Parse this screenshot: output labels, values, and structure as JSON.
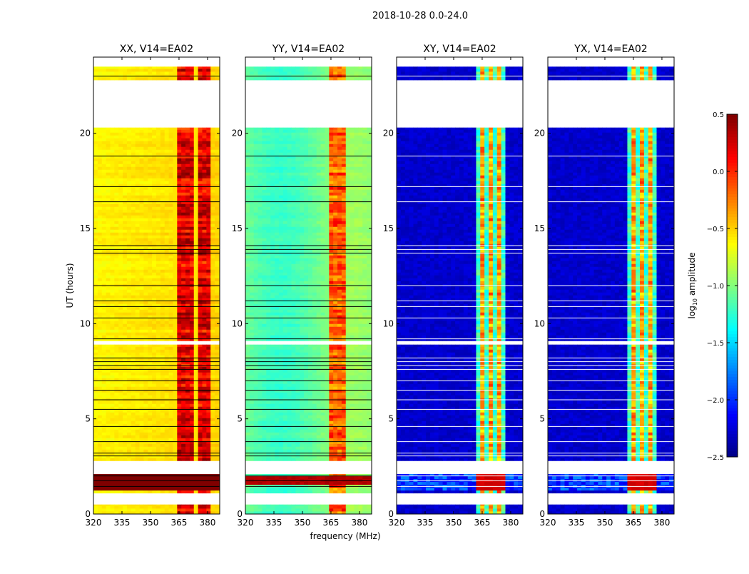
{
  "suptitle": "2018-10-28 0.0-24.0",
  "xlabel": "frequency (MHz)",
  "ylabel": "UT (hours)",
  "colorbar": {
    "label": "log10 amplitude",
    "label_base": "log",
    "label_sub": "10",
    "label_rest": " amplitude",
    "vmin": -2.5,
    "vmax": 0.5,
    "ticks": [
      "0.5",
      "0.0",
      "−0.5",
      "−1.0",
      "−1.5",
      "−2.0",
      "−2.5"
    ],
    "tick_values": [
      0.5,
      0,
      -0.5,
      -1,
      -1.5,
      -2,
      -2.5
    ],
    "colormap": "jet"
  },
  "chart_data": [
    {
      "type": "heatmap",
      "title": "XX, V14=EA02",
      "xlim": [
        320,
        386.4
      ],
      "ylim": [
        0,
        24
      ],
      "xticks": [
        "320",
        "335",
        "350",
        "365",
        "380"
      ],
      "xtick_values": [
        320,
        335,
        350,
        365,
        380
      ],
      "yticks": [
        "0",
        "5",
        "10",
        "15",
        "20"
      ],
      "ytick_values": [
        0,
        5,
        10,
        15,
        20
      ],
      "base_level": -0.65,
      "rfi_level": 0.05,
      "rfi_band_mhz": [
        362,
        382
      ],
      "strong_rows_hours": [
        1.2,
        2.0
      ],
      "strong_level": 0.5
    },
    {
      "type": "heatmap",
      "title": "YY, V14=EA02",
      "xlim": [
        320,
        386.4
      ],
      "ylim": [
        0,
        24
      ],
      "xticks": [
        "320",
        "335",
        "350",
        "365",
        "380"
      ],
      "xtick_values": [
        320,
        335,
        350,
        365,
        380
      ],
      "yticks": [
        "0",
        "5",
        "10",
        "15",
        "20"
      ],
      "ytick_values": [
        0,
        5,
        10,
        15,
        20
      ],
      "base_level": -1.1,
      "rfi_level": -0.3,
      "rfi_band_mhz": [
        362,
        372
      ],
      "strong_rows_hours": [
        1.5,
        1.9
      ],
      "strong_level": 0.3
    },
    {
      "type": "heatmap",
      "title": "XY, V14=EA02",
      "xlim": [
        320,
        386.4
      ],
      "ylim": [
        0,
        24
      ],
      "xticks": [
        "320",
        "335",
        "350",
        "365",
        "380"
      ],
      "xtick_values": [
        320,
        335,
        350,
        365,
        380
      ],
      "yticks": [
        "0",
        "5",
        "10",
        "15",
        "20"
      ],
      "ytick_values": [
        0,
        5,
        10,
        15,
        20
      ],
      "base_level": -2.35,
      "rfi_level": -0.6,
      "rfi_band_mhz": [
        362,
        378
      ],
      "strong_rows_hours": [
        1.2,
        2.0
      ],
      "strong_level": 0.2
    },
    {
      "type": "heatmap",
      "title": "YX, V14=EA02",
      "xlim": [
        320,
        386.4
      ],
      "ylim": [
        0,
        24
      ],
      "xticks": [
        "320",
        "335",
        "350",
        "365",
        "380"
      ],
      "xtick_values": [
        320,
        335,
        350,
        365,
        380
      ],
      "yticks": [
        "0",
        "5",
        "10",
        "15",
        "20"
      ],
      "ytick_values": [
        0,
        5,
        10,
        15,
        20
      ],
      "base_level": -2.35,
      "rfi_level": -0.6,
      "rfi_band_mhz": [
        362,
        378
      ],
      "strong_rows_hours": [
        1.2,
        2.0
      ],
      "strong_level": 0.2
    }
  ],
  "data_segments_hours": [
    [
      0,
      0.5
    ],
    [
      1.1,
      2.1
    ],
    [
      2.8,
      8.9
    ],
    [
      9.1,
      20.3
    ],
    [
      22.8,
      23.5
    ]
  ],
  "flag_lines_hours": [
    1.45,
    1.75,
    2.0,
    3.05,
    3.2,
    3.8,
    4.6,
    5.5,
    6.0,
    6.5,
    7.0,
    7.6,
    7.8,
    8.0,
    8.2,
    9.2,
    10.3,
    10.9,
    11.2,
    12.0,
    13.7,
    13.9,
    14.1,
    16.4,
    17.2,
    18.8,
    23.0
  ]
}
